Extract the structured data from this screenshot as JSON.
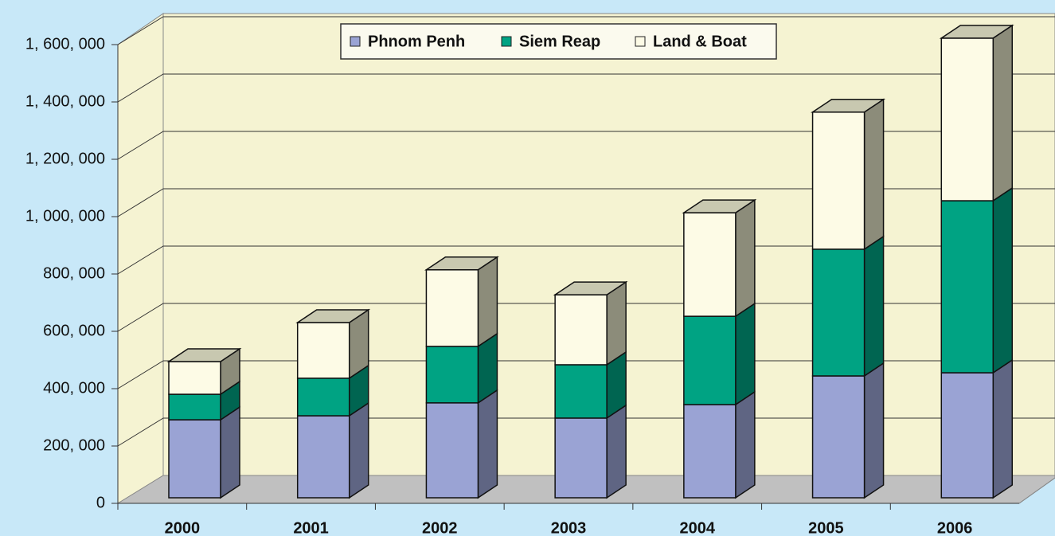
{
  "chart_data": {
    "type": "bar3d_stacked",
    "categories": [
      "2000",
      "2001",
      "2002",
      "2003",
      "2004",
      "2005",
      "2006"
    ],
    "series": [
      {
        "name": "Phnom Penh",
        "color": "#9aa3d4",
        "values": [
          272000,
          286000,
          331000,
          278000,
          325000,
          425000,
          436000
        ]
      },
      {
        "name": "Siem Reap",
        "color": "#00a383",
        "values": [
          89000,
          131000,
          197000,
          186000,
          308000,
          442000,
          600000
        ]
      },
      {
        "name": "Land & Boat",
        "color": "#fdfbe6",
        "values": [
          114000,
          194000,
          267000,
          244000,
          361000,
          478000,
          567000
        ]
      }
    ],
    "ylim": [
      0,
      1600000
    ],
    "yticks": [
      0,
      {
        "value": 200000,
        "label": "200, 000"
      },
      {
        "value": 400000,
        "label": "400, 000"
      },
      {
        "value": 600000,
        "label": "600, 000"
      },
      {
        "value": 800000,
        "label": "800, 000"
      },
      {
        "value": 1000000,
        "label": "1, 000, 000"
      },
      {
        "value": 1200000,
        "label": "1, 200, 000"
      },
      {
        "value": 1400000,
        "label": "1, 400, 000"
      },
      {
        "value": 1600000,
        "label": "1, 600, 000"
      }
    ],
    "grid": true,
    "legend": "top"
  }
}
